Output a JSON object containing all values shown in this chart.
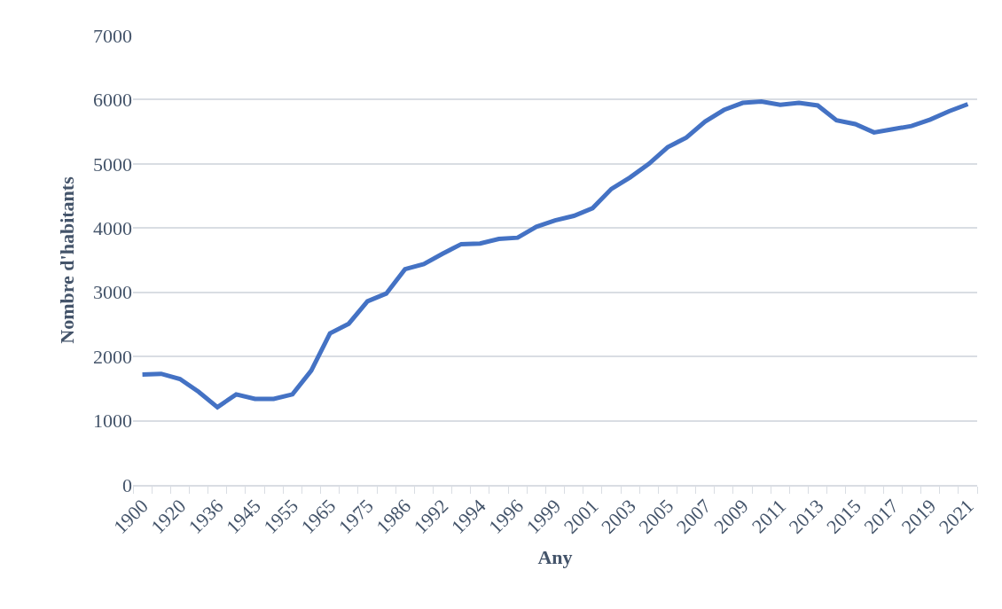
{
  "chart_data": {
    "type": "line",
    "xlabel": "Any",
    "ylabel": "Nombre d'habitants",
    "categories": [
      "1900",
      null,
      "1920",
      null,
      "1936",
      null,
      "1945",
      null,
      "1955",
      null,
      "1965",
      null,
      "1975",
      null,
      "1986",
      null,
      "1992",
      null,
      "1994",
      null,
      "1996",
      null,
      "1999",
      null,
      "2001",
      null,
      "2003",
      null,
      "2005",
      null,
      "2007",
      null,
      "2009",
      null,
      "2011",
      null,
      "2013",
      null,
      "2015",
      null,
      "2017",
      null,
      "2019",
      null,
      "2021"
    ],
    "series": [
      {
        "color": "#4472c4",
        "values": [
          1720,
          1730,
          1650,
          1450,
          1210,
          1410,
          1340,
          1340,
          1410,
          1780,
          2360,
          2510,
          2860,
          2980,
          3360,
          3440,
          3600,
          3750,
          3760,
          3830,
          3850,
          4020,
          4120,
          4190,
          4310,
          4610,
          4790,
          5000,
          5260,
          5410,
          5660,
          5840,
          5950,
          5970,
          5920,
          5950,
          5910,
          5680,
          5620,
          5490,
          5540,
          5590,
          5690,
          5820,
          5930
        ]
      }
    ],
    "ylim": [
      0,
      7000
    ],
    "yticks": [
      0,
      1000,
      2000,
      3000,
      4000,
      5000,
      6000,
      7000
    ],
    "grid": "y",
    "legend": false,
    "marker": "none",
    "line_style": "solid"
  }
}
